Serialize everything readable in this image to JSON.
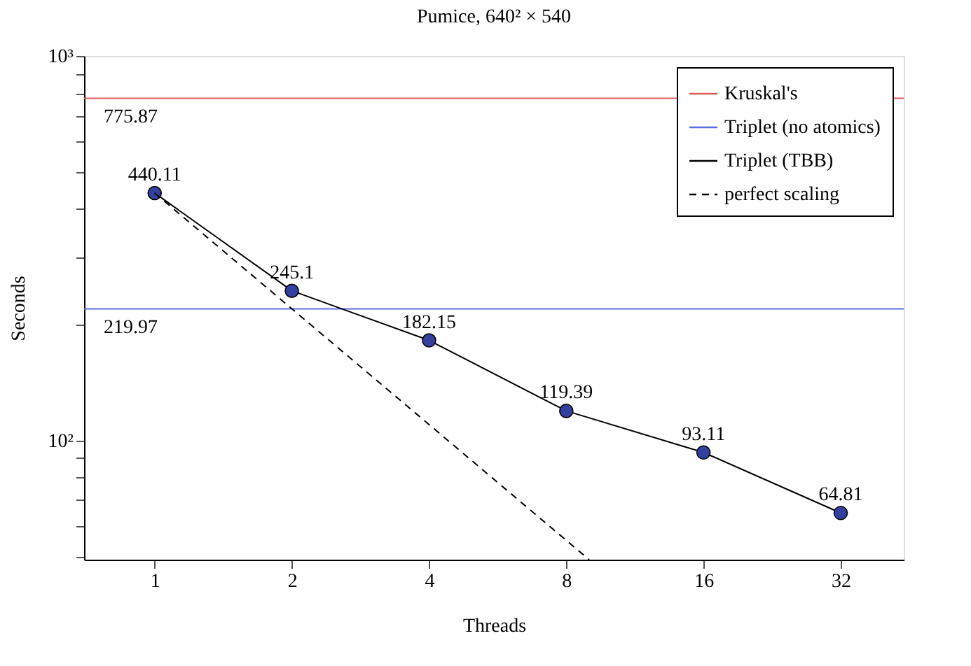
{
  "chart_data": {
    "type": "line",
    "title": "Pumice, 640² × 540",
    "xlabel": "Threads",
    "ylabel": "Seconds",
    "log": "xy",
    "grid": false,
    "legend": "top right",
    "xlim": [
      0.7,
      44
    ],
    "xticks": [
      1,
      2,
      4,
      8,
      16,
      32
    ],
    "ylim": [
      49,
      1000
    ],
    "yticks": [
      {
        "value": 50,
        "label": null
      },
      {
        "value": 60,
        "label": null
      },
      {
        "value": 70,
        "label": null
      },
      {
        "value": 80,
        "label": null
      },
      {
        "value": 90,
        "label": null
      },
      {
        "value": 100,
        "label": "10²"
      },
      {
        "value": 200,
        "label": null
      },
      {
        "value": 300,
        "label": null
      },
      {
        "value": 400,
        "label": null
      },
      {
        "value": 500,
        "label": null
      },
      {
        "value": 600,
        "label": null
      },
      {
        "value": 700,
        "label": null
      },
      {
        "value": 800,
        "label": null
      },
      {
        "value": 900,
        "label": null
      },
      {
        "value": 1000,
        "label": "10³"
      }
    ],
    "series": [
      {
        "name": "Kruskal's",
        "color": "#e05a5a",
        "marker": "none",
        "line_style": "solid",
        "x": [
          0.7,
          44
        ],
        "values": [
          775.87,
          775.87
        ],
        "value_labels": [
          "775.87",
          null
        ]
      },
      {
        "name": "Triplet (no atomics)",
        "color": "#5a6ee0",
        "marker": "none",
        "line_style": "solid",
        "x": [
          0.7,
          44
        ],
        "values": [
          219.97,
          219.97
        ],
        "value_labels": [
          "219.97",
          null
        ]
      },
      {
        "name": "Triplet (TBB)",
        "color": "#3340a0",
        "marker": "circle",
        "line_style": "solid",
        "x": [
          1,
          2,
          4,
          8,
          16,
          32
        ],
        "values": [
          440.11,
          245.1,
          182.15,
          119.39,
          93.11,
          64.81
        ],
        "value_labels": [
          "440.11",
          "245.1",
          "182.15",
          "119.39",
          "93.11",
          "64.81"
        ]
      },
      {
        "name": "perfect scaling",
        "color": "#000000",
        "marker": "none",
        "line_style": "dashed",
        "x": [
          1,
          8.98
        ],
        "values": [
          440.11,
          49
        ]
      }
    ]
  }
}
